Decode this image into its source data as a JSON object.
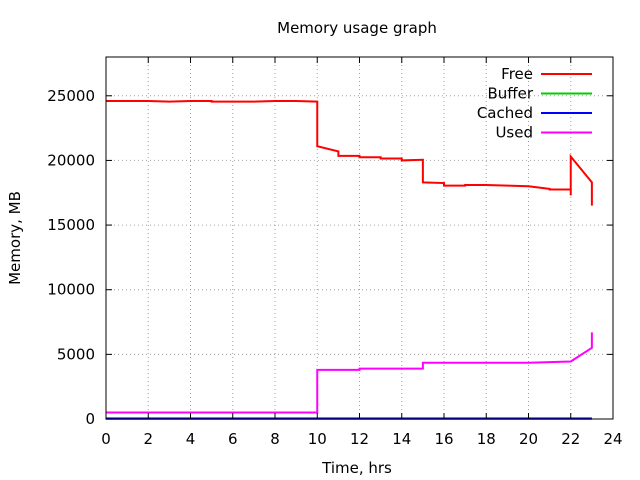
{
  "chart_data": {
    "type": "line",
    "title": "Memory usage graph",
    "xlabel": "Time, hrs",
    "ylabel": "Memory, MB",
    "xlim": [
      0,
      24
    ],
    "ylim": [
      0,
      28000
    ],
    "xticks": [
      0,
      2,
      4,
      6,
      8,
      10,
      12,
      14,
      16,
      18,
      20,
      22,
      24
    ],
    "yticks": [
      0,
      5000,
      10000,
      15000,
      20000,
      25000
    ],
    "grid": true,
    "legend_position": "top-right",
    "series": [
      {
        "name": "Free",
        "color": "#ff0000",
        "points": [
          [
            0,
            24600
          ],
          [
            1,
            24600
          ],
          [
            2,
            24600
          ],
          [
            3,
            24550
          ],
          [
            4,
            24600
          ],
          [
            5,
            24600
          ],
          [
            5,
            24550
          ],
          [
            6,
            24550
          ],
          [
            7,
            24550
          ],
          [
            8,
            24600
          ],
          [
            9,
            24600
          ],
          [
            10,
            24550
          ],
          [
            10,
            21100
          ],
          [
            11,
            20700
          ],
          [
            11,
            20350
          ],
          [
            12,
            20350
          ],
          [
            12,
            20250
          ],
          [
            13,
            20250
          ],
          [
            13,
            20150
          ],
          [
            14,
            20150
          ],
          [
            14,
            20000
          ],
          [
            15,
            20050
          ],
          [
            15,
            18300
          ],
          [
            16,
            18250
          ],
          [
            16,
            18050
          ],
          [
            17,
            18050
          ],
          [
            17,
            18100
          ],
          [
            18,
            18100
          ],
          [
            19,
            18050
          ],
          [
            20,
            18000
          ],
          [
            21,
            17800
          ],
          [
            21,
            17750
          ],
          [
            22,
            17750
          ],
          [
            22,
            17300
          ],
          [
            22,
            20300
          ],
          [
            23,
            18300
          ],
          [
            23,
            16500
          ]
        ]
      },
      {
        "name": "Buffer",
        "color": "#00cc00",
        "points": [
          [
            0,
            60
          ],
          [
            10,
            60
          ],
          [
            15,
            60
          ],
          [
            20,
            60
          ],
          [
            23,
            60
          ]
        ]
      },
      {
        "name": "Cached",
        "color": "#0000ff",
        "points": [
          [
            0,
            20
          ],
          [
            10,
            20
          ],
          [
            15,
            20
          ],
          [
            20,
            20
          ],
          [
            23,
            20
          ]
        ]
      },
      {
        "name": "Used",
        "color": "#ff00ff",
        "points": [
          [
            0,
            500
          ],
          [
            10,
            500
          ],
          [
            10,
            3800
          ],
          [
            11,
            3800
          ],
          [
            12,
            3800
          ],
          [
            12,
            3900
          ],
          [
            13,
            3900
          ],
          [
            14,
            3900
          ],
          [
            15,
            3900
          ],
          [
            15,
            4350
          ],
          [
            16,
            4350
          ],
          [
            17,
            4350
          ],
          [
            18,
            4350
          ],
          [
            19,
            4350
          ],
          [
            20,
            4350
          ],
          [
            21,
            4400
          ],
          [
            22,
            4450
          ],
          [
            23,
            5500
          ],
          [
            23,
            6700
          ]
        ]
      }
    ]
  }
}
